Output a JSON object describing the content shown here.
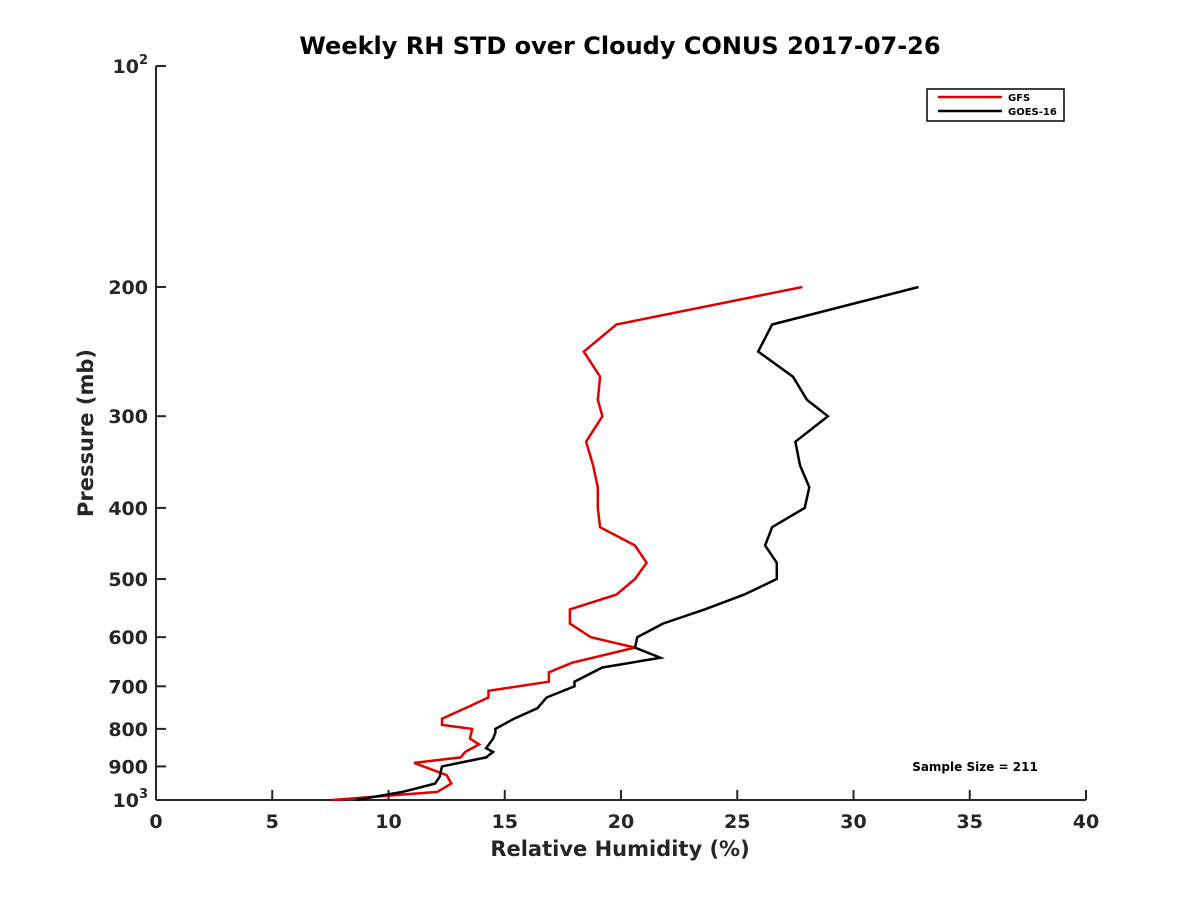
{
  "chart_data": {
    "type": "line",
    "title": "Weekly RH STD over Cloudy CONUS 2017-07-26",
    "xlabel": "Relative Humidity (%)",
    "ylabel": "Pressure (mb)",
    "xlim": [
      0,
      40
    ],
    "ylim": [
      100,
      1000
    ],
    "yscale": "log",
    "y_reversed": true,
    "grid": false,
    "legend_location": "top-right",
    "x_ticks": [
      0,
      5,
      10,
      15,
      20,
      25,
      30,
      35,
      40
    ],
    "y_ticks": [
      {
        "value": 100,
        "base": "10",
        "exp": "2"
      },
      {
        "value": 200,
        "label": "200"
      },
      {
        "value": 300,
        "label": "300"
      },
      {
        "value": 400,
        "label": "400"
      },
      {
        "value": 500,
        "label": "500"
      },
      {
        "value": 600,
        "label": "600"
      },
      {
        "value": 700,
        "label": "700"
      },
      {
        "value": 800,
        "label": "800"
      },
      {
        "value": 900,
        "label": "900"
      },
      {
        "value": 1000,
        "base": "10",
        "exp": "3"
      }
    ],
    "annotation": "Sample Size = 211",
    "series": [
      {
        "name": "GFS",
        "color": "#e00000",
        "points": [
          [
            27.8,
            200
          ],
          [
            19.8,
            225
          ],
          [
            18.4,
            245
          ],
          [
            19.1,
            265
          ],
          [
            19.0,
            285
          ],
          [
            19.2,
            300
          ],
          [
            18.5,
            325
          ],
          [
            18.8,
            350
          ],
          [
            19.0,
            375
          ],
          [
            19.0,
            400
          ],
          [
            19.1,
            425
          ],
          [
            20.6,
            450
          ],
          [
            21.1,
            475
          ],
          [
            20.6,
            500
          ],
          [
            19.8,
            525
          ],
          [
            17.8,
            550
          ],
          [
            17.8,
            575
          ],
          [
            18.7,
            600
          ],
          [
            20.6,
            620
          ],
          [
            17.9,
            650
          ],
          [
            16.9,
            670
          ],
          [
            16.9,
            690
          ],
          [
            14.3,
            710
          ],
          [
            14.3,
            725
          ],
          [
            13.3,
            750
          ],
          [
            12.3,
            775
          ],
          [
            12.3,
            790
          ],
          [
            13.6,
            800
          ],
          [
            13.5,
            825
          ],
          [
            13.9,
            840
          ],
          [
            13.3,
            860
          ],
          [
            13.1,
            875
          ],
          [
            11.1,
            890
          ],
          [
            12.5,
            925
          ],
          [
            12.7,
            950
          ],
          [
            12.1,
            975
          ],
          [
            7.6,
            1000
          ]
        ]
      },
      {
        "name": "GOES-16",
        "color": "#000000",
        "points": [
          [
            32.8,
            200
          ],
          [
            26.5,
            225
          ],
          [
            25.9,
            245
          ],
          [
            27.4,
            265
          ],
          [
            28.0,
            285
          ],
          [
            28.9,
            300
          ],
          [
            27.5,
            325
          ],
          [
            27.7,
            350
          ],
          [
            28.1,
            375
          ],
          [
            27.9,
            400
          ],
          [
            26.5,
            425
          ],
          [
            26.2,
            450
          ],
          [
            26.7,
            475
          ],
          [
            26.7,
            500
          ],
          [
            25.3,
            525
          ],
          [
            23.6,
            550
          ],
          [
            21.8,
            575
          ],
          [
            20.7,
            600
          ],
          [
            20.6,
            620
          ],
          [
            21.7,
            640
          ],
          [
            19.2,
            660
          ],
          [
            18.0,
            690
          ],
          [
            18.0,
            700
          ],
          [
            16.8,
            725
          ],
          [
            16.4,
            750
          ],
          [
            15.4,
            775
          ],
          [
            14.6,
            800
          ],
          [
            14.6,
            810
          ],
          [
            14.5,
            825
          ],
          [
            14.2,
            850
          ],
          [
            14.5,
            860
          ],
          [
            14.2,
            875
          ],
          [
            12.3,
            900
          ],
          [
            12.2,
            930
          ],
          [
            12.0,
            950
          ],
          [
            10.6,
            975
          ],
          [
            8.6,
            1000
          ]
        ]
      }
    ]
  }
}
